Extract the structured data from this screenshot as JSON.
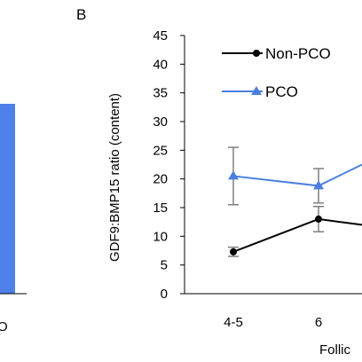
{
  "panel_a": {
    "bar_color": "#4f7fe8",
    "partial_xtick": "O"
  },
  "panel_b": {
    "label": "B",
    "ylabel": "GDF9:BMP15 ratio (content)",
    "xlabel": "Follic",
    "yticks": [
      "0",
      "5",
      "10",
      "15",
      "20",
      "25",
      "30",
      "35",
      "40",
      "45"
    ],
    "legend": {
      "non_pco": "Non-PCO",
      "pco": "PCO"
    }
  },
  "chart_data": {
    "type": "line",
    "ylabel": "GDF9:BMP15 ratio (content)",
    "xlabel": "Follic",
    "ylim": [
      0,
      45
    ],
    "categories": [
      "4-5",
      "6"
    ],
    "series": [
      {
        "name": "Non-PCO",
        "color": "#000000",
        "values": [
          7.3,
          13.0
        ],
        "continues_to": 12.0,
        "error": [
          0.8,
          2.2
        ]
      },
      {
        "name": "PCO",
        "color": "#4a7fe0",
        "values": [
          20.5,
          18.8
        ],
        "continues_to": 22.5,
        "error": [
          5.0,
          3.0
        ]
      }
    ],
    "grid": false,
    "legend_position": "top-right"
  }
}
